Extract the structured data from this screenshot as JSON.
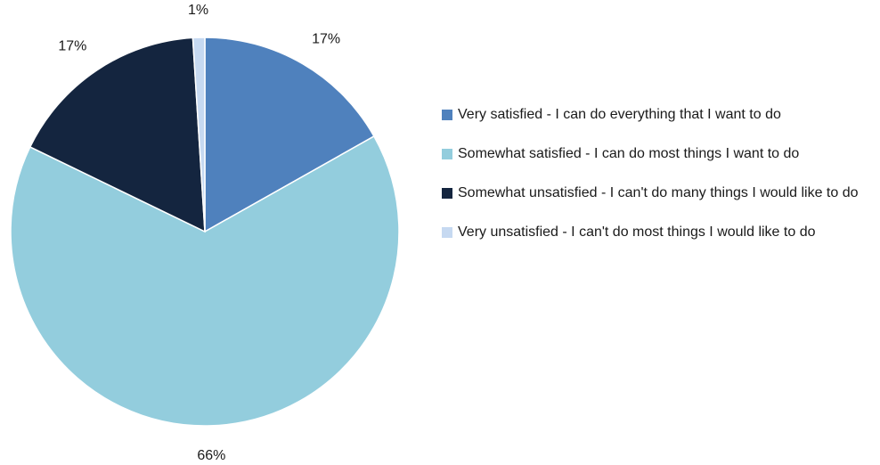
{
  "chart_data": {
    "type": "pie",
    "title": "",
    "slices": [
      {
        "label": "Very satisfied - I can do everything that I want to do",
        "value": 17,
        "value_label": "17%",
        "color": "#4f81bd"
      },
      {
        "label": "Somewhat satisfied - I can do most things I want to do",
        "value": 66,
        "value_label": "66%",
        "color": "#93cddd"
      },
      {
        "label": "Somewhat unsatisfied - I can't do many things I would like to do",
        "value": 17,
        "value_label": "17%",
        "color": "#14253f"
      },
      {
        "label": "Very unsatisfied - I can't do most things I would like to do",
        "value": 1,
        "value_label": "1%",
        "color": "#c6d9f1"
      }
    ],
    "legend_position": "right",
    "start_angle": "12 o'clock",
    "direction": "clockwise"
  }
}
